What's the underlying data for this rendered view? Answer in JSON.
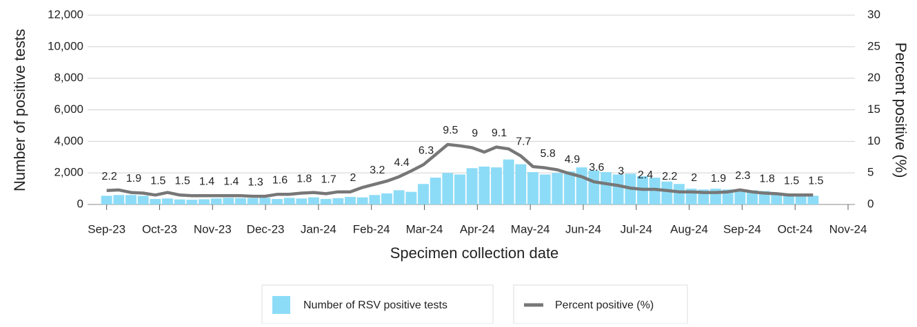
{
  "chart_data": {
    "type": "bar-line",
    "x_label": "Specimen collection date",
    "y_label": "Number of positive tests",
    "y2_label": "Percent positive (%)",
    "xlim": [
      -0.36,
      14.13
    ],
    "xticks": [
      {
        "value": 0,
        "label": "Sep-23"
      },
      {
        "value": 1,
        "label": "Oct-23"
      },
      {
        "value": 2,
        "label": "Nov-23"
      },
      {
        "value": 3,
        "label": "Dec-23"
      },
      {
        "value": 4,
        "label": "Jan-24"
      },
      {
        "value": 5,
        "label": "Feb-24"
      },
      {
        "value": 6,
        "label": "Mar-24"
      },
      {
        "value": 7,
        "label": "Apr-24"
      },
      {
        "value": 8,
        "label": "May-24"
      },
      {
        "value": 9,
        "label": "Jun-24"
      },
      {
        "value": 10,
        "label": "Jul-24"
      },
      {
        "value": 11,
        "label": "Aug-24"
      },
      {
        "value": 12,
        "label": "Sep-24"
      },
      {
        "value": 13,
        "label": "Oct-24"
      },
      {
        "value": 14,
        "label": "Nov-24"
      }
    ],
    "ylim": [
      0,
      12000
    ],
    "yticks": [
      0,
      {
        "value": 2000,
        "label": "2,000"
      },
      {
        "value": 4000,
        "label": "4,000"
      },
      {
        "value": 6000,
        "label": "6,000"
      },
      {
        "value": 8000,
        "label": "8,000"
      },
      {
        "value": 10000,
        "label": "10,000"
      },
      {
        "value": 12000,
        "label": "12,000"
      }
    ],
    "y2lim": [
      0,
      30
    ],
    "y2ticks": [
      0,
      5,
      10,
      15,
      20,
      25,
      30
    ],
    "grid": true,
    "x": [
      0,
      0.23,
      0.46,
      0.69,
      0.92,
      1.15,
      1.38,
      1.61,
      1.84,
      2.07,
      2.3,
      2.53,
      2.76,
      2.99,
      3.22,
      3.45,
      3.68,
      3.91,
      4.14,
      4.37,
      4.6,
      4.83,
      5.06,
      5.29,
      5.52,
      5.75,
      5.98,
      6.21,
      6.44,
      6.67,
      6.9,
      7.13,
      7.36,
      7.59,
      7.82,
      8.05,
      8.28,
      8.51,
      8.74,
      8.97,
      9.2,
      9.43,
      9.66,
      9.89,
      10.12,
      10.35,
      10.58,
      10.81,
      11.04,
      11.27,
      11.5,
      11.73,
      11.96,
      12.19,
      12.42,
      12.65,
      12.88,
      13.11,
      13.34
    ],
    "series": [
      {
        "name": "Number of RSV positive tests",
        "type": "bar",
        "color": "#8ddcf7",
        "values": [
          550,
          600,
          600,
          550,
          350,
          380,
          320,
          300,
          330,
          380,
          420,
          400,
          400,
          420,
          350,
          420,
          380,
          450,
          350,
          400,
          480,
          450,
          600,
          700,
          900,
          800,
          1300,
          1700,
          2000,
          1900,
          2300,
          2400,
          2350,
          2850,
          2550,
          2050,
          1900,
          2000,
          2100,
          2350,
          2150,
          2050,
          1900,
          1950,
          1800,
          1700,
          1450,
          1300,
          1000,
          950,
          1000,
          950,
          950,
          900,
          850,
          750,
          700,
          650,
          550
        ]
      },
      {
        "name": "Percent positive (%)",
        "type": "line",
        "axis": "y2",
        "color": "#777777",
        "values": [
          2.2,
          2.3,
          1.9,
          1.8,
          1.5,
          1.9,
          1.5,
          1.4,
          1.4,
          1.4,
          1.4,
          1.4,
          1.3,
          1.3,
          1.6,
          1.6,
          1.8,
          1.9,
          1.7,
          2.0,
          2,
          2.7,
          3.2,
          3.7,
          4.4,
          5.3,
          6.3,
          7.9,
          9.5,
          9.3,
          9,
          8.3,
          9.1,
          8.8,
          7.7,
          6.0,
          5.8,
          5.5,
          4.9,
          4.4,
          3.6,
          3.3,
          3,
          2.6,
          2.4,
          2.4,
          2.2,
          2.0,
          2,
          1.9,
          1.9,
          2.0,
          2.3,
          2.0,
          1.8,
          1.7,
          1.5,
          1.5,
          1.5
        ],
        "value_labels": [
          "2.2",
          null,
          "1.9",
          null,
          "1.5",
          null,
          "1.5",
          null,
          "1.4",
          null,
          "1.4",
          null,
          "1.3",
          null,
          "1.6",
          null,
          "1.8",
          null,
          "1.7",
          null,
          "2",
          null,
          "3.2",
          null,
          "4.4",
          null,
          "6.3",
          null,
          "9.5",
          null,
          "9",
          null,
          "9.1",
          null,
          "7.7",
          null,
          "5.8",
          null,
          "4.9",
          null,
          "3.6",
          null,
          "3",
          null,
          "2.4",
          null,
          "2.2",
          null,
          "2",
          null,
          "1.9",
          null,
          "2.3",
          null,
          "1.8",
          null,
          "1.5",
          null,
          "1.5"
        ]
      }
    ]
  }
}
